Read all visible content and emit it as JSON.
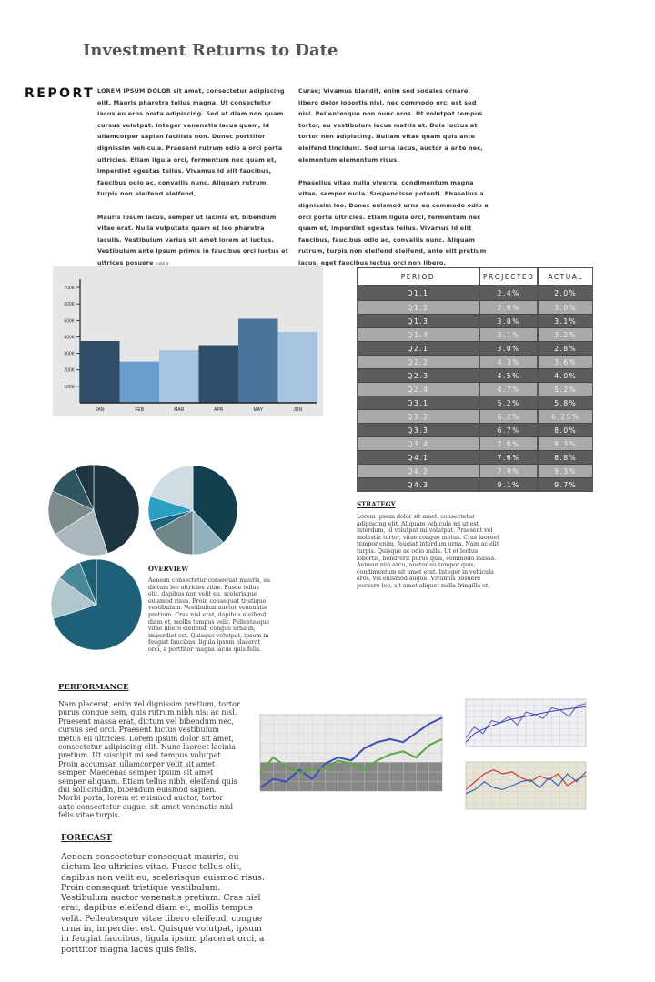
{
  "title": "Investment Returns to Date",
  "report_label": "REPORT",
  "intro": {
    "left": [
      {
        "lead": "LOREM IPSUM DOLOR",
        "text": " sit amet, consectetur adipiscing elit. Mauris pharetra tellus magna. Ut consectetur lacus eu eros porta adipiscing. Sed at diam non quam cursus volutpat. Integer venenatis lacus quam, id ullamcorper sapien facilisis non. Donec porttitor dignissim vehicula. Praesent rutrum odio a orci porta ultricies. Etiam ligula orci, fermentum nec quam et, imperdiet egestas tellus. Vivamus id elit faucibus, faucibus odio ac, convallis nunc. Aliquam rutrum, turpis non eleifend eleifend,"
      },
      {
        "lead": "",
        "text": "Mauris ipsum lacus, semper ut lacinia et, bibendum vitae erat. Nulla vulputate quam et leo pharetra iaculis. Vestibulum varius sit amet lorem at luctus. Vestibulum ante ipsum primis in faucibus orci luctus et ultrices posuere",
        "tail": "cubilia"
      }
    ],
    "right": [
      "Curae; Vivamus blandit, enim sed sodales ornare, libero dolor lobortis nisl, nec commodo orci est sed nisi. Pellentesque non nunc eros. Ut volutpat tempus tortor, eu vestibulum lacus mattis at. Duis luctus at tortor non adipiscing. Nullam vitae quam quis ante eleifend tincidunt. Sed urna lacus, auctor a ante nec, elementum elementum risus.",
      "Phasellus vitae nulla viverra, condimentum magna vitae, semper nulla. Suspendisse potenti. Phasellus a dignissim leo. Donec euismod urna eu commodo odio a orci porta ultricies. Etiam ligula orci, fermentum nec quam et, imperdiet egestas tellus. Vivamus id elit faucibus, faucibus odio ac, convallis nunc. Aliquam rutrum, turpis non eleifend eleifend, ante elit pretium lacus, eget faucibus lectus orci non libero."
    ]
  },
  "chart_data": [
    {
      "type": "bar",
      "categories": [
        "JAN",
        "FEB",
        "MAR",
        "APR",
        "MAY",
        "JUN"
      ],
      "values": [
        375000,
        250000,
        320000,
        350000,
        510000,
        430000
      ],
      "y_ticks": [
        "100K",
        "200K",
        "300K",
        "400K",
        "500K",
        "600K",
        "700K"
      ],
      "ylim": [
        0,
        750000
      ],
      "bar_colors": [
        "#2f4d66",
        "#6a9fcd",
        "#a6c3e0",
        "#2f4d66",
        "#4a749b",
        "#a6c3e0"
      ],
      "background": "#e6e6e6"
    },
    {
      "type": "pie",
      "slices": [
        0.45,
        0.21,
        0.16,
        0.11,
        0.07
      ],
      "colors": [
        "#1f353f",
        "#aab8be",
        "#7b8a8a",
        "#2e5560",
        "#1f353f"
      ]
    },
    {
      "type": "pie",
      "slices": [
        0.38,
        0.12,
        0.17,
        0.04,
        0.09,
        0.2
      ],
      "colors": [
        "#12404f",
        "#8fb0bc",
        "#6f8588",
        "#1c6278",
        "#2ba0c4",
        "#cfdde3"
      ]
    },
    {
      "type": "pie",
      "slices": [
        0.7,
        0.15,
        0.09,
        0.06
      ],
      "colors": [
        "#1f6079",
        "#aec6cc",
        "#4a8797",
        "#1f6079"
      ]
    },
    {
      "type": "line",
      "x": [
        1,
        2,
        3,
        4,
        5,
        6,
        7,
        8,
        9,
        10,
        11,
        12,
        13,
        14,
        15
      ],
      "series": [
        {
          "values": [
            10,
            40,
            30,
            70,
            40,
            90,
            110,
            100,
            140,
            160,
            170,
            160,
            190,
            220,
            240
          ],
          "color": "#3b4fb8"
        },
        {
          "values": [
            60,
            110,
            80,
            60,
            70,
            75,
            100,
            90,
            70,
            100,
            120,
            130,
            110,
            150,
            170
          ],
          "color": "#5aa83c"
        }
      ],
      "ylim": [
        0,
        250
      ],
      "grid": true
    },
    {
      "type": "line",
      "series": [
        {
          "values": [
            20,
            45,
            30,
            60,
            55,
            70,
            50,
            80,
            75,
            65,
            90,
            85,
            70,
            95,
            100
          ],
          "color": "#5a55b0"
        },
        {
          "values": [
            10,
            30,
            40,
            48,
            55,
            62,
            66,
            70,
            74,
            78,
            82,
            85,
            88,
            90,
            92
          ],
          "color": "#2e40a6"
        }
      ],
      "ylim": [
        0,
        110
      ],
      "grid": true
    },
    {
      "type": "line",
      "series": [
        {
          "values": [
            50,
            70,
            90,
            100,
            90,
            95,
            80,
            70,
            85,
            75,
            90,
            60,
            75,
            85
          ],
          "color": "#c33a3a"
        },
        {
          "values": [
            40,
            50,
            70,
            55,
            50,
            60,
            70,
            75,
            55,
            80,
            60,
            90,
            70,
            95
          ],
          "color": "#3b5fc0"
        }
      ],
      "ylim": [
        0,
        120
      ],
      "grid": true
    }
  ],
  "table": {
    "headers": [
      "PERIOD",
      "PROJECTED",
      "ACTUAL"
    ],
    "rows": [
      [
        "Q1.1",
        "2.4%",
        "2.0%"
      ],
      [
        "Q1.2",
        "2.6%",
        "3.0%"
      ],
      [
        "Q1.3",
        "3.0%",
        "3.1%"
      ],
      [
        "Q1.4",
        "3.1%",
        "3.2%"
      ],
      [
        "Q2.1",
        "3.0%",
        "2.8%"
      ],
      [
        "Q2.2",
        "4.3%",
        "3.6%"
      ],
      [
        "Q2.3",
        "4.5%",
        "4.0%"
      ],
      [
        "Q2.4",
        "4.7%",
        "5.2%"
      ],
      [
        "Q3.1",
        "5.2%",
        "5.8%"
      ],
      [
        "Q3.2",
        "6.2%",
        "6.25%"
      ],
      [
        "Q3.3",
        "6.7%",
        "8.0%"
      ],
      [
        "Q3.4",
        "7.0%",
        "8.3%"
      ],
      [
        "Q4.1",
        "7.6%",
        "8.8%"
      ],
      [
        "Q4.2",
        "7.9%",
        "9.3%"
      ],
      [
        "Q4.3",
        "9.1%",
        "9.7%"
      ]
    ]
  },
  "strategy": {
    "heading": "STRATEGY",
    "text": "Lorem ipsum dolor sit amet, consectetur adipiscing elit. Aliquam vehicula mi ut est interdum, id volutpat mi volutpat. Praesent vel molestie tortor, vitae congue metus. Cras laoreet tempor enim, feugiat interdum urna. Nam ac elit turpis. Quisque ac odio nulla. Ut et lectus lobortis, hendrerit purus quis, commodo massa. Aenean nisi arcu, auctor eu tempor quis, condimentum sit amet erat. Integer in vehicula eros, vel euismod augue. Vivamus posuere posuere leo, sit amet aliquet nulla fringilla et."
  },
  "overview": {
    "heading": "OVERVIEW",
    "text": "Aenean consectetur consequat mauris, eu dictum leo ultricies vitae. Fusce tellus elit, dapibus non velit eu, scelerisque euismod risus. Proin consequat tristique vestibulum. Vestibulum auctor venenatis pretium. Cras nisl erat, dapibus eleifend diam et, mollis tempus velit. Pellentesque vitae libero eleifend, congue urna in, imperdiet est. Quisque volutpat, ipsum in feugiat faucibus, ligula ipsum placerat orci, a porttitor magna lacus quis felis."
  },
  "performance": {
    "heading": "PERFORMANCE",
    "text": "Nam placerat, enim vel dignissim pretium, tortor purus congue sem, quis rutrum nibh nisi ac nisl. Praesent massa erat, dictum vel bibendum nec, cursus sed orci. Praesent luctus vestibulum metus eu ultricies. Lorem ipsum dolor sit amet, consectetur adipiscing elit. Nunc laoreet lacinia pretium. Ut suscipit mi sed tempus volutpat. Proin accumsan ullamcorper velit sit amet semper. Maecenas semper ipsum sit amet semper aliquam. Etiam tellus nibh, eleifend quis dui sollicitudin, bibendum euismod sapien. Morbi porta, lorem et euismod auctor, tortor ante consectetur augue, sit amet venenatis nisl felis vitae turpis."
  },
  "forecast": {
    "heading": "FORECAST",
    "text": "Aenean consectetur consequat mauris, eu dictum leo ultricies vitae. Fusce tellus elit, dapibus non velit eu, scelerisque euismod risus. Proin consequat tristique vestibulum. Vestibulum auctor venenatis pretium. Cras nisl erat, dapibus eleifend diam et, mollis tempus velit. Pellentesque vitae libero eleifend, congue urna in, imperdiet est. Quisque volutpat, ipsum in feugiat faucibus, ligula ipsum placerat orci, a porttitor magna lacus quis felis."
  }
}
